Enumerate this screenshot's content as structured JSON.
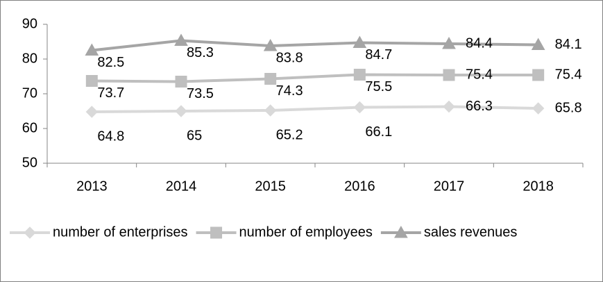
{
  "chart_data": {
    "type": "line",
    "categories": [
      "2013",
      "2014",
      "2015",
      "2016",
      "2017",
      "2018"
    ],
    "series": [
      {
        "name": "number of enterprises",
        "color": "#d9d9d9",
        "marker": "diamond",
        "values": [
          64.8,
          65,
          65.2,
          66.1,
          66.3,
          65.8
        ]
      },
      {
        "name": "number of employees",
        "color": "#bfbfbf",
        "marker": "square",
        "values": [
          73.7,
          73.5,
          74.3,
          75.5,
          75.4,
          75.4
        ]
      },
      {
        "name": "sales revenues",
        "color": "#a5a5a5",
        "marker": "triangle",
        "values": [
          82.5,
          85.3,
          83.8,
          84.7,
          84.4,
          84.1
        ]
      }
    ],
    "ylim": [
      50,
      90
    ],
    "yticks": [
      50,
      60,
      70,
      80,
      90
    ],
    "grid": false,
    "legend": "bottom"
  }
}
